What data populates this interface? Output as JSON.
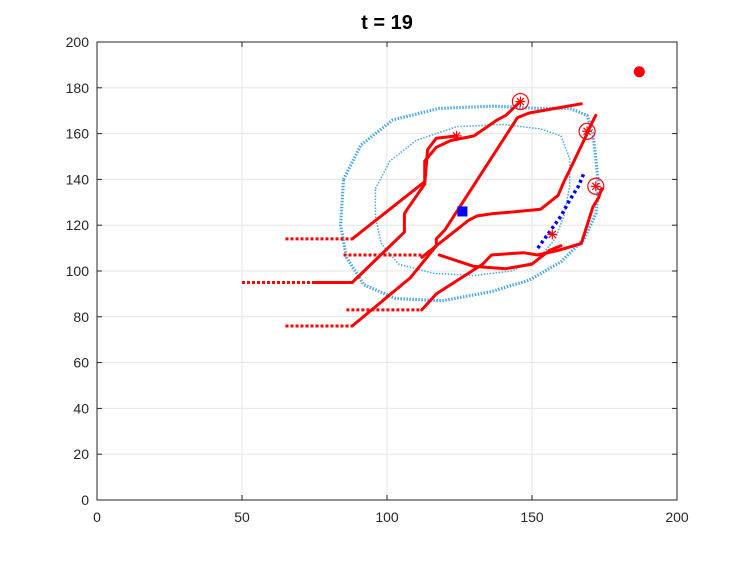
{
  "chart_data": {
    "type": "scatter",
    "title": "t = 19",
    "xlabel": "",
    "ylabel": "",
    "xlim": [
      0,
      200
    ],
    "ylim": [
      0,
      200
    ],
    "x_ticks": [
      0,
      50,
      100,
      150,
      200
    ],
    "y_ticks": [
      0,
      20,
      40,
      60,
      80,
      100,
      120,
      140,
      160,
      180,
      200
    ],
    "grid": true,
    "colors": {
      "path": "#ff0000",
      "contour": "#4ba6e6",
      "predicted": "#0000ff",
      "target": "#0000ff",
      "goal": "#ff0000"
    },
    "solid_paths": [
      [
        [
          75,
          95
        ],
        [
          88,
          95
        ],
        [
          106,
          117
        ],
        [
          106,
          125
        ],
        [
          107,
          127
        ],
        [
          113,
          138
        ],
        [
          114,
          153
        ],
        [
          117,
          158
        ],
        [
          124,
          159
        ]
      ],
      [
        [
          88,
          76
        ],
        [
          108,
          97
        ],
        [
          117,
          111
        ],
        [
          117,
          114
        ],
        [
          120,
          118
        ],
        [
          145,
          167
        ],
        [
          149,
          169
        ],
        [
          158,
          171
        ],
        [
          167,
          173
        ]
      ],
      [
        [
          88,
          114
        ],
        [
          113,
          139
        ],
        [
          113,
          148
        ],
        [
          117,
          154
        ],
        [
          122,
          157
        ],
        [
          130,
          159
        ],
        [
          138,
          166
        ],
        [
          141,
          168
        ],
        [
          146,
          174
        ]
      ],
      [
        [
          112,
          106
        ],
        [
          128,
          122
        ],
        [
          131,
          124
        ],
        [
          136,
          125
        ],
        [
          145,
          126
        ],
        [
          153,
          127
        ],
        [
          159,
          133
        ],
        [
          161,
          139
        ],
        [
          163,
          144
        ],
        [
          166,
          152
        ],
        [
          169,
          160
        ],
        [
          170,
          163
        ],
        [
          172,
          168
        ]
      ],
      [
        [
          112,
          83
        ],
        [
          117,
          90
        ],
        [
          133,
          103
        ],
        [
          136,
          107
        ],
        [
          147,
          108
        ],
        [
          152,
          107
        ],
        [
          159,
          109
        ],
        [
          167,
          112
        ],
        [
          169,
          120
        ],
        [
          171,
          128
        ],
        [
          173,
          132
        ],
        [
          174,
          136
        ]
      ],
      [
        [
          118,
          107
        ],
        [
          130,
          102
        ],
        [
          141,
          101
        ],
        [
          150,
          103
        ],
        [
          156,
          109
        ],
        [
          160,
          111
        ]
      ]
    ],
    "dotted_paths": [
      [
        [
          65,
          114
        ],
        [
          88,
          114
        ]
      ],
      [
        [
          50,
          95
        ],
        [
          75,
          95
        ]
      ],
      [
        [
          65,
          76
        ],
        [
          88,
          76
        ]
      ],
      [
        [
          85,
          107
        ],
        [
          112,
          107
        ]
      ],
      [
        [
          86,
          83
        ],
        [
          112,
          83
        ]
      ]
    ],
    "contours": [
      {
        "name": "outer",
        "width": 3.2,
        "points": [
          [
            85,
            140
          ],
          [
            91,
            155
          ],
          [
            102,
            166
          ],
          [
            118,
            171
          ],
          [
            137,
            172
          ],
          [
            152,
            171
          ],
          [
            163,
            171
          ],
          [
            169,
            168
          ],
          [
            171,
            160
          ],
          [
            172,
            149
          ],
          [
            173,
            137
          ],
          [
            172,
            125
          ],
          [
            168,
            114
          ],
          [
            160,
            104
          ],
          [
            149,
            96
          ],
          [
            136,
            91
          ],
          [
            119,
            87
          ],
          [
            103,
            88
          ],
          [
            92,
            94
          ],
          [
            86,
            106
          ],
          [
            84,
            120
          ]
        ]
      },
      {
        "name": "inner",
        "width": 1.5,
        "points": [
          [
            96,
            136
          ],
          [
            101,
            148
          ],
          [
            110,
            157
          ],
          [
            124,
            163
          ],
          [
            140,
            164
          ],
          [
            153,
            162
          ],
          [
            160,
            159
          ],
          [
            163,
            149
          ],
          [
            163,
            137
          ],
          [
            161,
            124
          ],
          [
            158,
            114
          ],
          [
            152,
            105
          ],
          [
            143,
            100
          ],
          [
            130,
            98
          ],
          [
            116,
            99
          ],
          [
            104,
            103
          ],
          [
            98,
            112
          ],
          [
            96,
            124
          ]
        ]
      }
    ],
    "predicted_path": [
      [
        152,
        110
      ],
      [
        156,
        117
      ],
      [
        160,
        124
      ],
      [
        163,
        131
      ],
      [
        166,
        137
      ],
      [
        168,
        143
      ]
    ],
    "asterisks": [
      [
        146,
        174
      ],
      [
        124,
        159
      ],
      [
        169,
        161
      ],
      [
        172,
        137
      ],
      [
        157,
        116
      ]
    ],
    "circles": [
      [
        146,
        174
      ],
      [
        169,
        161
      ],
      [
        172,
        137
      ]
    ],
    "target": [
      126,
      126
    ],
    "goal": [
      187,
      187
    ]
  }
}
